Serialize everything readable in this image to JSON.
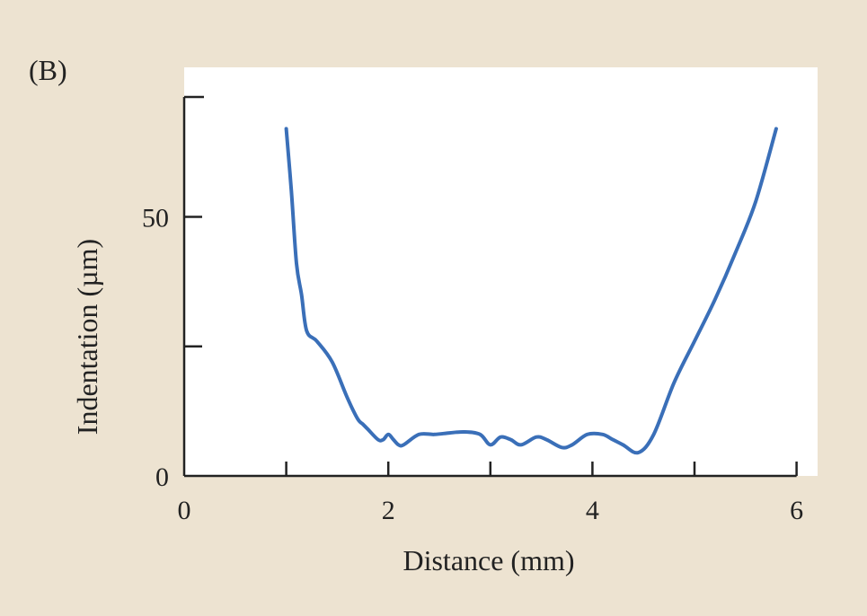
{
  "panel_label": "(B)",
  "colors": {
    "background": "#ede3d1",
    "plot_area": "#ffffff",
    "axis": "#222222",
    "series": "#3a6fb8"
  },
  "chart_data": {
    "type": "line",
    "xlabel": "Distance (mm)",
    "ylabel": "Indentation (µm)",
    "xlim": [
      0,
      6
    ],
    "ylim": [
      0,
      67
    ],
    "x_ticks": [
      0,
      1,
      2,
      3,
      4,
      5,
      6
    ],
    "x_tick_labels": [
      {
        "value": 0,
        "label": "0"
      },
      {
        "value": 2,
        "label": "2"
      },
      {
        "value": 4,
        "label": "4"
      },
      {
        "value": 6,
        "label": "6"
      }
    ],
    "y_ticks": [
      0,
      25,
      50
    ],
    "y_tick_labels": [
      {
        "value": 0,
        "label": "0"
      },
      {
        "value": 50,
        "label": "50"
      }
    ],
    "grid": false,
    "series": [
      {
        "x": [
          1.0,
          1.05,
          1.1,
          1.15,
          1.2,
          1.3,
          1.45,
          1.6,
          1.7,
          1.75,
          1.8,
          1.9,
          1.95,
          2.0,
          2.05,
          2.1,
          2.15,
          2.3,
          2.45,
          2.6,
          2.75,
          2.9,
          3.0,
          3.1,
          3.2,
          3.3,
          3.45,
          3.55,
          3.7,
          3.8,
          3.95,
          4.1,
          4.2,
          4.3,
          4.45,
          4.6,
          4.8,
          5.0,
          5.2,
          5.4,
          5.6,
          5.8
        ],
        "y": [
          67,
          55,
          41,
          35,
          28,
          26,
          22,
          15,
          11,
          10,
          9,
          7,
          7,
          8,
          7,
          6,
          6,
          8,
          8,
          8.3,
          8.5,
          8,
          6,
          7.5,
          7,
          6,
          7.5,
          7,
          5.5,
          6,
          8,
          8,
          7,
          6,
          4.5,
          8,
          18,
          26,
          34,
          43,
          53,
          67
        ]
      }
    ]
  }
}
